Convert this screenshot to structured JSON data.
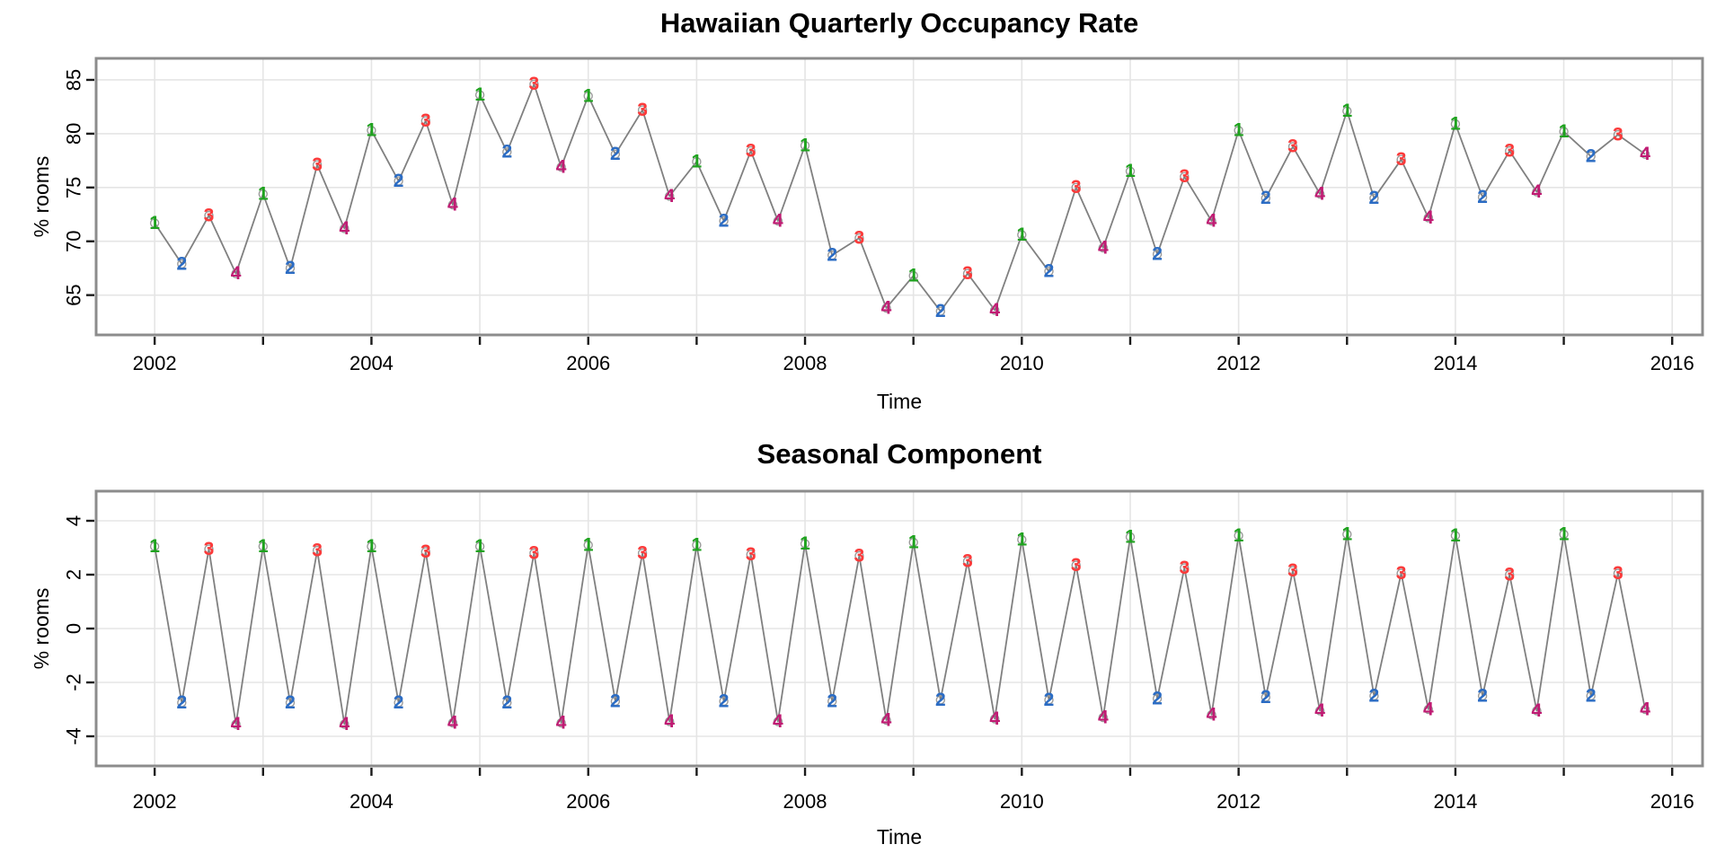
{
  "palette": {
    "q1_green": "#1ea21e",
    "q2_blue": "#2b6cc4",
    "q3_red": "#fb3a3a",
    "q4_magenta": "#c01b73",
    "line_gray": "#808080",
    "marker_gray": "#9a9a9a",
    "grid_gray": "#e5e5e5",
    "frame_gray": "#8c8c8c",
    "tick_color": "#1a1a1a",
    "text_color": "#000000",
    "background": "#ffffff"
  },
  "chart_data": [
    {
      "type": "line",
      "title": "Hawaiian Quarterly Occupancy Rate",
      "xlabel": "Time",
      "ylabel": "% rooms",
      "x_start": 2002,
      "x_step": 0.25,
      "xlim": [
        2001.46,
        2016.28
      ],
      "ylim": [
        61.3,
        87.0
      ],
      "y_ticks": [
        65,
        70,
        75,
        80,
        85
      ],
      "x_grid_years": [
        2002,
        2003,
        2004,
        2005,
        2006,
        2007,
        2008,
        2009,
        2010,
        2011,
        2012,
        2013,
        2014,
        2015,
        2016
      ],
      "x_labeled_years": [
        2002,
        2004,
        2006,
        2008,
        2010,
        2012,
        2014,
        2016
      ],
      "grid": true,
      "legend": "none",
      "point_label_cycle": [
        "1",
        "2",
        "3",
        "4"
      ],
      "series": [
        {
          "name": "quarterly occupancy rate",
          "values": [
            71.7,
            67.9,
            72.4,
            67.0,
            74.4,
            67.5,
            77.1,
            71.2,
            80.3,
            75.6,
            81.2,
            73.4,
            83.6,
            78.3,
            84.6,
            76.9,
            83.5,
            78.1,
            82.2,
            74.2,
            77.4,
            71.9,
            78.4,
            71.9,
            78.9,
            68.7,
            70.3,
            63.8,
            66.8,
            63.5,
            67.0,
            63.6,
            70.6,
            67.2,
            75.0,
            69.4,
            76.5,
            68.8,
            76.0,
            71.9,
            80.3,
            74.0,
            78.8,
            74.4,
            82.1,
            74.0,
            77.6,
            72.2,
            80.9,
            74.1,
            78.4,
            74.6,
            80.2,
            77.9,
            79.9,
            78.1
          ]
        }
      ]
    },
    {
      "type": "line",
      "title": "Seasonal Component",
      "xlabel": "Time",
      "ylabel": "% rooms",
      "x_start": 2002,
      "x_step": 0.25,
      "xlim": [
        2001.46,
        2016.28
      ],
      "ylim": [
        -5.1,
        5.1
      ],
      "y_ticks": [
        -4,
        -2,
        0,
        2,
        4
      ],
      "x_grid_years": [
        2002,
        2003,
        2004,
        2005,
        2006,
        2007,
        2008,
        2009,
        2010,
        2011,
        2012,
        2013,
        2014,
        2015,
        2016
      ],
      "x_labeled_years": [
        2002,
        2004,
        2006,
        2008,
        2010,
        2012,
        2014,
        2016
      ],
      "grid": true,
      "legend": "none",
      "point_label_cycle": [
        "1",
        "2",
        "3",
        "4"
      ],
      "series": [
        {
          "name": "seasonal component",
          "values": [
            3.05,
            -2.75,
            2.95,
            -3.55,
            3.05,
            -2.75,
            2.9,
            -3.55,
            3.05,
            -2.75,
            2.85,
            -3.5,
            3.05,
            -2.75,
            2.8,
            -3.5,
            3.1,
            -2.7,
            2.8,
            -3.45,
            3.1,
            -2.7,
            2.75,
            -3.45,
            3.15,
            -2.7,
            2.7,
            -3.4,
            3.2,
            -2.65,
            2.5,
            -3.35,
            3.3,
            -2.65,
            2.35,
            -3.3,
            3.4,
            -2.6,
            2.25,
            -3.2,
            3.45,
            -2.55,
            2.15,
            -3.05,
            3.5,
            -2.5,
            2.05,
            -3.0,
            3.45,
            -2.5,
            2.0,
            -3.05,
            3.5,
            -2.5,
            2.05,
            -3.0
          ]
        }
      ]
    }
  ]
}
